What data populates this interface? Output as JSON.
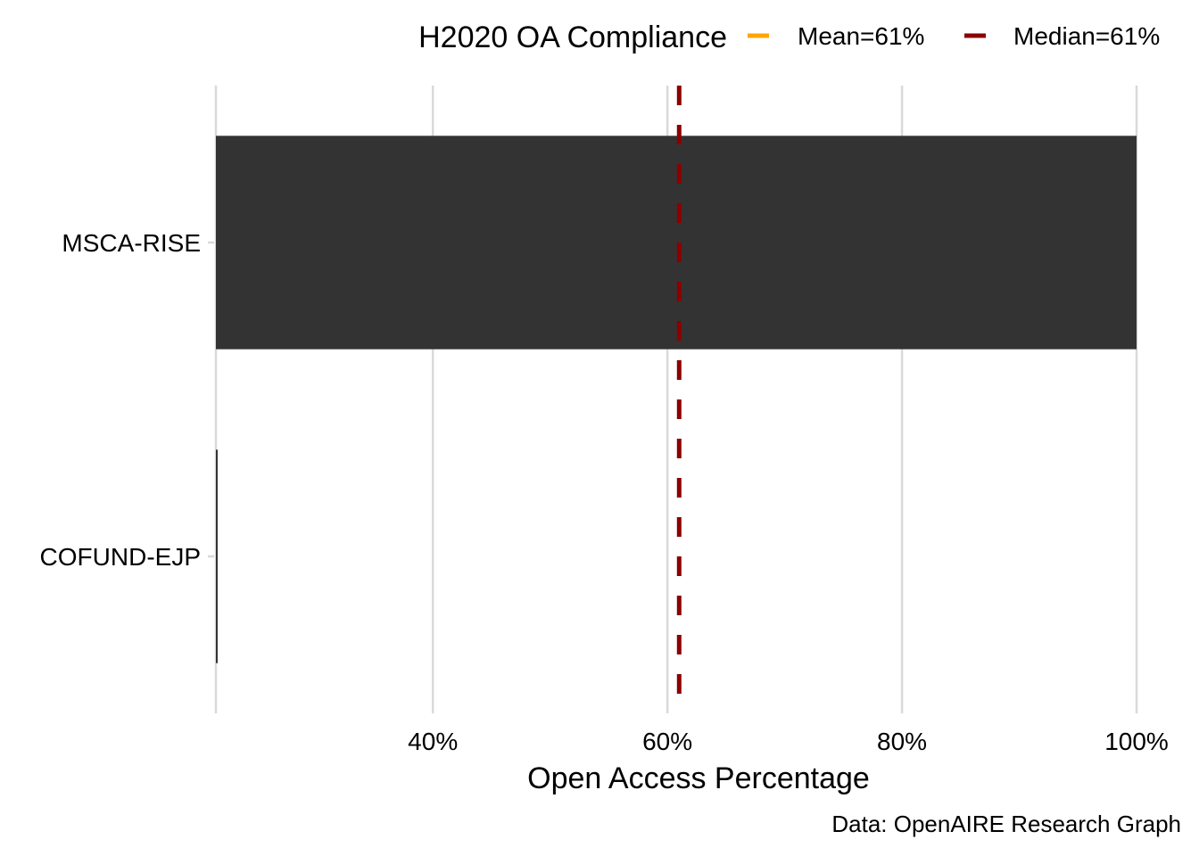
{
  "chart_data": {
    "type": "bar",
    "title": "",
    "xlabel": "Open Access Percentage",
    "ylabel": "",
    "categories": [
      "MSCA-RISE",
      "COFUND-EJP"
    ],
    "values": [
      100,
      21.5
    ],
    "x_ticks": [
      40,
      60,
      80,
      100
    ],
    "x_tick_labels": [
      "40%",
      "60%",
      "80%",
      "100%"
    ],
    "xlim": [
      21.5,
      102
    ],
    "grid": "vertical major gridlines",
    "legend": {
      "title": "H2020 OA Compliance",
      "position": "top-right",
      "entries": [
        {
          "label": "Mean=61%",
          "value": 61,
          "color": "#FFA500",
          "linetype": "solid"
        },
        {
          "label": "Median=61%",
          "value": 61,
          "color": "#8B0000",
          "linetype": "dashed"
        }
      ]
    },
    "reference_lines": [
      {
        "name": "Median",
        "value": 61,
        "color": "#8B0000",
        "linetype": "dashed"
      }
    ],
    "bar_color": "#333333",
    "caption": "Data: OpenAIRE Research Graph"
  }
}
